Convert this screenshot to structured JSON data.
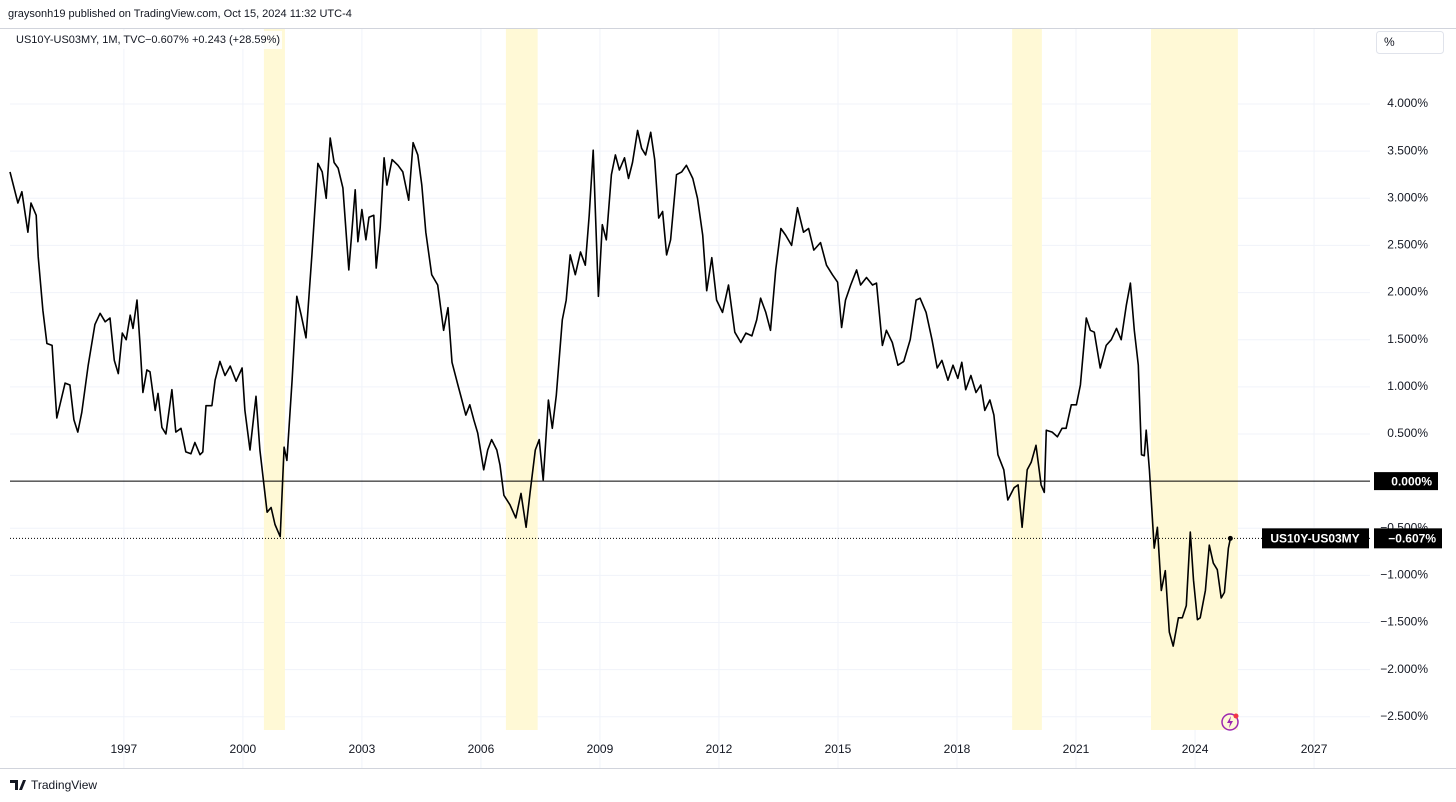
{
  "header": {
    "publisher": "graysonh19 published on TradingView.com, Oct 15, 2024 11:32 UTC-4"
  },
  "chart_data": {
    "type": "line",
    "legend_title": "US10Y-US03MY, 1M, TVC",
    "legend_value": "−0.607%",
    "legend_change": "+0.243 (+28.59%)",
    "unit_button": "%",
    "x": [
      1994.13,
      1994.33,
      1994.43,
      1994.58,
      1994.66,
      1994.79,
      1994.84,
      1994.96,
      1995.06,
      1995.19,
      1995.31,
      1995.52,
      1995.64,
      1995.74,
      1995.84,
      1995.94,
      1996.1,
      1996.27,
      1996.4,
      1996.53,
      1996.65,
      1996.76,
      1996.86,
      1996.96,
      1997.06,
      1997.16,
      1997.23,
      1997.33,
      1997.41,
      1997.48,
      1997.58,
      1997.66,
      1997.79,
      1997.86,
      1997.96,
      1998.06,
      1998.21,
      1998.31,
      1998.44,
      1998.56,
      1998.69,
      1998.79,
      1998.92,
      1998.99,
      1999.07,
      1999.22,
      1999.3,
      1999.42,
      1999.55,
      1999.68,
      1999.83,
      1999.98,
      2000.05,
      2000.18,
      2000.33,
      2000.43,
      2000.61,
      2000.71,
      2000.81,
      2000.94,
      2001.04,
      2001.11,
      2001.24,
      2001.36,
      2001.47,
      2001.59,
      2001.74,
      2001.89,
      2002.0,
      2002.1,
      2002.2,
      2002.3,
      2002.4,
      2002.52,
      2002.67,
      2002.83,
      2002.9,
      2003.0,
      2003.1,
      2003.18,
      2003.3,
      2003.36,
      2003.46,
      2003.56,
      2003.63,
      2003.76,
      2003.91,
      2004.03,
      2004.18,
      2004.29,
      2004.41,
      2004.51,
      2004.61,
      2004.76,
      2004.91,
      2005.06,
      2005.17,
      2005.27,
      2005.42,
      2005.52,
      2005.62,
      2005.72,
      2005.82,
      2005.92,
      2006.07,
      2006.17,
      2006.27,
      2006.4,
      2006.48,
      2006.58,
      2006.73,
      2006.88,
      2007.01,
      2007.14,
      2007.24,
      2007.37,
      2007.47,
      2007.57,
      2007.7,
      2007.8,
      2007.9,
      2008.05,
      2008.15,
      2008.25,
      2008.38,
      2008.51,
      2008.63,
      2008.73,
      2008.83,
      2008.96,
      2009.06,
      2009.16,
      2009.29,
      2009.39,
      2009.49,
      2009.62,
      2009.72,
      2009.82,
      2009.95,
      2010.05,
      2010.15,
      2010.28,
      2010.38,
      2010.48,
      2010.58,
      2010.68,
      2010.78,
      2010.93,
      2011.06,
      2011.18,
      2011.34,
      2011.46,
      2011.59,
      2011.69,
      2011.82,
      2011.94,
      2012.09,
      2012.24,
      2012.4,
      2012.55,
      2012.68,
      2012.83,
      2012.95,
      2013.05,
      2013.18,
      2013.3,
      2013.43,
      2013.56,
      2013.68,
      2013.83,
      2013.98,
      2014.13,
      2014.26,
      2014.39,
      2014.56,
      2014.71,
      2014.86,
      2014.99,
      2015.09,
      2015.19,
      2015.32,
      2015.47,
      2015.57,
      2015.72,
      2015.87,
      2015.97,
      2016.12,
      2016.22,
      2016.37,
      2016.51,
      2016.66,
      2016.82,
      2016.97,
      2017.07,
      2017.22,
      2017.37,
      2017.5,
      2017.62,
      2017.77,
      2017.9,
      2018.02,
      2018.12,
      2018.22,
      2018.35,
      2018.48,
      2018.6,
      2018.7,
      2018.83,
      2018.93,
      2019.03,
      2019.18,
      2019.28,
      2019.44,
      2019.54,
      2019.64,
      2019.77,
      2019.87,
      2019.99,
      2020.12,
      2020.2,
      2020.25,
      2020.4,
      2020.53,
      2020.65,
      2020.75,
      2020.88,
      2021.01,
      2021.11,
      2021.26,
      2021.36,
      2021.46,
      2021.61,
      2021.76,
      2021.89,
      2022.02,
      2022.14,
      2022.27,
      2022.37,
      2022.47,
      2022.57,
      2022.65,
      2022.72,
      2022.77,
      2022.85,
      2022.97,
      2023.05,
      2023.15,
      2023.25,
      2023.35,
      2023.45,
      2023.58,
      2023.68,
      2023.78,
      2023.88,
      2023.96,
      2024.06,
      2024.13,
      2024.26,
      2024.36,
      2024.46,
      2024.56,
      2024.66,
      2024.74,
      2024.84,
      2024.89
    ],
    "series": [
      {
        "name": "US10Y-US03MY",
        "color": "#000000",
        "values": [
          3.28,
          2.95,
          3.07,
          2.64,
          2.95,
          2.82,
          2.38,
          1.81,
          1.46,
          1.44,
          0.67,
          1.04,
          1.02,
          0.65,
          0.52,
          0.73,
          1.23,
          1.66,
          1.78,
          1.69,
          1.73,
          1.28,
          1.14,
          1.57,
          1.5,
          1.76,
          1.62,
          1.92,
          1.44,
          0.94,
          1.18,
          1.16,
          0.75,
          0.93,
          0.57,
          0.5,
          0.97,
          0.52,
          0.56,
          0.31,
          0.29,
          0.41,
          0.28,
          0.31,
          0.8,
          0.8,
          1.07,
          1.27,
          1.12,
          1.22,
          1.06,
          1.2,
          0.75,
          0.33,
          0.9,
          0.33,
          -0.33,
          -0.28,
          -0.46,
          -0.59,
          0.36,
          0.22,
          1.07,
          1.96,
          1.76,
          1.52,
          2.4,
          3.37,
          3.28,
          3.0,
          3.64,
          3.38,
          3.32,
          3.11,
          2.24,
          3.09,
          2.54,
          2.88,
          2.56,
          2.8,
          2.82,
          2.26,
          2.69,
          3.43,
          3.14,
          3.41,
          3.35,
          3.28,
          2.98,
          3.59,
          3.46,
          3.14,
          2.64,
          2.19,
          2.08,
          1.6,
          1.84,
          1.26,
          1.02,
          0.86,
          0.7,
          0.81,
          0.65,
          0.51,
          0.12,
          0.33,
          0.44,
          0.33,
          0.17,
          -0.15,
          -0.25,
          -0.39,
          -0.13,
          -0.49,
          -0.12,
          0.33,
          0.44,
          0.01,
          0.86,
          0.56,
          0.91,
          1.71,
          1.92,
          2.4,
          2.19,
          2.43,
          2.29,
          2.82,
          3.51,
          1.96,
          2.72,
          2.56,
          3.25,
          3.46,
          3.3,
          3.43,
          3.21,
          3.38,
          3.72,
          3.53,
          3.46,
          3.7,
          3.41,
          2.79,
          2.86,
          2.4,
          2.56,
          3.25,
          3.28,
          3.35,
          3.21,
          3.0,
          2.61,
          2.02,
          2.37,
          1.92,
          1.79,
          2.08,
          1.58,
          1.47,
          1.57,
          1.54,
          1.71,
          1.94,
          1.79,
          1.6,
          2.24,
          2.68,
          2.61,
          2.5,
          2.9,
          2.64,
          2.68,
          2.45,
          2.53,
          2.29,
          2.19,
          2.11,
          1.63,
          1.92,
          2.08,
          2.24,
          2.08,
          2.16,
          2.08,
          2.1,
          1.44,
          1.6,
          1.47,
          1.23,
          1.27,
          1.5,
          1.92,
          1.94,
          1.79,
          1.5,
          1.2,
          1.28,
          1.07,
          1.23,
          1.09,
          1.26,
          0.97,
          1.12,
          0.94,
          1.02,
          0.75,
          0.86,
          0.7,
          0.28,
          0.12,
          -0.2,
          -0.07,
          -0.04,
          -0.49,
          0.12,
          0.2,
          0.38,
          -0.04,
          -0.12,
          0.54,
          0.52,
          0.47,
          0.56,
          0.56,
          0.81,
          0.81,
          1.02,
          1.73,
          1.6,
          1.58,
          1.2,
          1.44,
          1.5,
          1.62,
          1.5,
          1.87,
          2.1,
          1.6,
          1.23,
          0.28,
          0.27,
          0.54,
          0.12,
          -0.71,
          -0.49,
          -1.16,
          -0.95,
          -1.6,
          -1.75,
          -1.45,
          -1.45,
          -1.32,
          -0.54,
          -1.05,
          -1.47,
          -1.45,
          -1.16,
          -0.68,
          -0.87,
          -0.94,
          -1.24,
          -1.18,
          -0.71,
          -0.607
        ]
      }
    ],
    "xlim": [
      1994.13,
      2028.41
    ],
    "xticks": [
      1997,
      2000,
      2003,
      2006,
      2009,
      2012,
      2015,
      2018,
      2021,
      2024,
      2027
    ],
    "ylim": [
      -2.64,
      4.52
    ],
    "yticks": [
      {
        "value": -2.5,
        "label": "−2.500%"
      },
      {
        "value": -2,
        "label": "−2.000%"
      },
      {
        "value": -1.5,
        "label": "−1.500%"
      },
      {
        "value": -1,
        "label": "−1.000%"
      },
      {
        "value": -0.5,
        "label": "−0.500%"
      },
      {
        "value": 0.5,
        "label": "0.500%"
      },
      {
        "value": 1,
        "label": "1.000%"
      },
      {
        "value": 1.5,
        "label": "1.500%"
      },
      {
        "value": 2,
        "label": "2.000%"
      },
      {
        "value": 2.5,
        "label": "2.500%"
      },
      {
        "value": 3,
        "label": "3.000%"
      },
      {
        "value": 3.5,
        "label": "3.500%"
      },
      {
        "value": 4,
        "label": "4.000%"
      }
    ],
    "grid": true,
    "highlights": [
      [
        2000.53,
        2001.06
      ],
      [
        2006.63,
        2007.43
      ],
      [
        2019.39,
        2020.14
      ],
      [
        2022.89,
        2025.08
      ]
    ],
    "highlight_color": "#fff9d6",
    "zero_line": {
      "value": 0,
      "label": "0.000%"
    },
    "price_label": {
      "value": -0.607,
      "label": "−0.607%"
    }
  },
  "footer": {
    "brand": "TradingView"
  }
}
